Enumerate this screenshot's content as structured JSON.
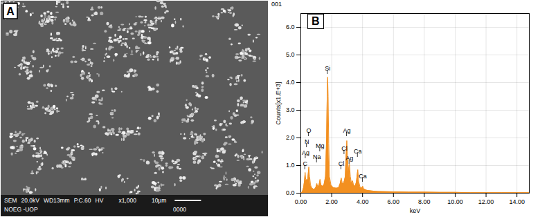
{
  "image_panel": {
    "label": "A",
    "info_line_1": [
      "SEM",
      "20.0kV",
      "WD13mm",
      "P.C.60",
      "HV",
      "x1,000",
      "10µm"
    ],
    "info_line_2": [
      "NOEG -UOP",
      "0000"
    ]
  },
  "chart_data": {
    "type": "area",
    "panel_label": "B",
    "title": "001",
    "x_label": "keV",
    "y_label": "Counts[x1.E+3]",
    "x": [
      0,
      0.1,
      0.18,
      0.24,
      0.28,
      0.32,
      0.36,
      0.39,
      0.44,
      0.48,
      0.52,
      0.57,
      0.63,
      0.7,
      0.8,
      0.9,
      0.98,
      1.04,
      1.1,
      1.18,
      1.25,
      1.31,
      1.4,
      1.5,
      1.6,
      1.67,
      1.71,
      1.74,
      1.77,
      1.81,
      1.86,
      1.95,
      2.1,
      2.3,
      2.45,
      2.55,
      2.62,
      2.69,
      2.76,
      2.82,
      2.88,
      2.93,
      2.98,
      3.03,
      3.09,
      3.15,
      3.21,
      3.28,
      3.35,
      3.42,
      3.52,
      3.6,
      3.69,
      3.76,
      3.85,
      3.94,
      4.01,
      4.08,
      4.3,
      4.6,
      5,
      6,
      7,
      8,
      9,
      10,
      11,
      12,
      13,
      14,
      14.8
    ],
    "values": [
      0,
      0.05,
      0.2,
      0.45,
      0.75,
      0.5,
      0.45,
      0.5,
      0.45,
      0.7,
      0.95,
      0.6,
      0.3,
      0.2,
      0.15,
      0.15,
      0.22,
      0.35,
      0.22,
      0.3,
      0.5,
      0.3,
      0.25,
      0.3,
      0.6,
      2.0,
      3.6,
      4.2,
      3.5,
      1.8,
      0.6,
      0.3,
      0.2,
      0.18,
      0.2,
      0.35,
      0.55,
      0.35,
      0.35,
      0.45,
      0.6,
      1.3,
      1.9,
      1.3,
      0.8,
      1.05,
      0.6,
      0.35,
      0.45,
      0.3,
      0.25,
      0.4,
      0.85,
      0.4,
      0.2,
      0.18,
      0.25,
      0.15,
      0.1,
      0.08,
      0.06,
      0.05,
      0.04,
      0.04,
      0.03,
      0.03,
      0.02,
      0.02,
      0.02,
      0.02,
      0.02
    ],
    "color": "#f39020",
    "xlim": [
      0,
      14.8
    ],
    "xticks": [
      {
        "value": 0,
        "label": "0.00"
      },
      {
        "value": 2,
        "label": "2.00"
      },
      {
        "value": 4,
        "label": "4.00"
      },
      {
        "value": 6,
        "label": "6.00"
      },
      {
        "value": 8,
        "label": "8.00"
      },
      {
        "value": 10,
        "label": "10.00"
      },
      {
        "value": 12,
        "label": "12.00"
      },
      {
        "value": 14,
        "label": "14.00"
      }
    ],
    "ylim": [
      0,
      6.5
    ],
    "yticks": [
      {
        "value": 0,
        "label": "0.0"
      },
      {
        "value": 1,
        "label": "1.0"
      },
      {
        "value": 2,
        "label": "2.0"
      },
      {
        "value": 3,
        "label": "3.0"
      },
      {
        "value": 4,
        "label": "4.0"
      },
      {
        "value": 5,
        "label": "5.0"
      },
      {
        "value": 6,
        "label": "6.0"
      }
    ],
    "grid": true,
    "annotations": [
      {
        "label": "O",
        "x": 0.52,
        "y": 2.2
      },
      {
        "label": "N",
        "x": 0.39,
        "y": 1.8
      },
      {
        "label": "Ag",
        "x": 0.31,
        "y": 1.4
      },
      {
        "label": "C",
        "x": 0.28,
        "y": 1.0
      },
      {
        "label": "Mg",
        "x": 1.25,
        "y": 1.65
      },
      {
        "label": "Na",
        "x": 1.04,
        "y": 1.25
      },
      {
        "label": "Si",
        "x": 1.74,
        "y": 4.45
      },
      {
        "label": "Ag",
        "x": 2.98,
        "y": 2.2
      },
      {
        "label": "Cl",
        "x": 2.82,
        "y": 1.55
      },
      {
        "label": "Cl",
        "x": 2.62,
        "y": 1.0
      },
      {
        "label": "Ag",
        "x": 3.15,
        "y": 1.2
      },
      {
        "label": "Ca",
        "x": 3.69,
        "y": 1.45
      },
      {
        "label": "Ca",
        "x": 4.01,
        "y": 0.55
      }
    ]
  }
}
